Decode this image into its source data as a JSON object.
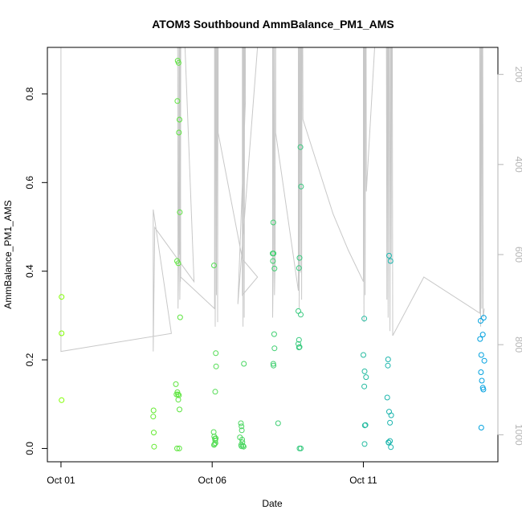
{
  "chart_data": {
    "type": "scatter",
    "title": "ATOM3 Southbound AmmBalance_PM1_AMS",
    "xlabel": "Date",
    "ylabel": "AmmBalance_PM1_AMS",
    "x_tick_labels": [
      {
        "x": 1.0,
        "label": "Oct 01"
      },
      {
        "x": 6.0,
        "label": "Oct 06"
      },
      {
        "x": 11.0,
        "label": "Oct 11"
      }
    ],
    "y_ticks": [
      0.0,
      0.2,
      0.4,
      0.6,
      0.8
    ],
    "y_tick_labels": [
      "0.0",
      "0.2",
      "0.4",
      "0.6",
      "0.8"
    ],
    "xlim": [
      0.55,
      15.45
    ],
    "ylim": [
      -0.03,
      0.905
    ],
    "right_axis": {
      "ticks": [
        200,
        400,
        600,
        800,
        1000
      ],
      "tick_labels": [
        "200",
        "400",
        "600",
        "800",
        "1000"
      ],
      "ylim": [
        1060,
        140
      ],
      "color": "#b5b5b5"
    },
    "grid": false,
    "legend": "none",
    "series": [
      {
        "color_start": "#80ff00",
        "color_end": "#00a0e0",
        "points": [
          [
            1.02,
            0.342
          ],
          [
            1.02,
            0.26
          ],
          [
            1.02,
            0.109
          ],
          [
            4.06,
            0.086
          ],
          [
            4.05,
            0.072
          ],
          [
            4.07,
            0.036
          ],
          [
            4.08,
            0.004
          ],
          [
            4.8,
            0.145
          ],
          [
            4.82,
            0.122
          ],
          [
            4.85,
            0.127
          ],
          [
            4.88,
            0.11
          ],
          [
            4.9,
            0.12
          ],
          [
            4.92,
            0.088
          ],
          [
            4.87,
            0.122
          ],
          [
            4.91,
            0.0
          ],
          [
            4.84,
            0.0
          ],
          [
            4.86,
            0.875
          ],
          [
            4.89,
            0.87
          ],
          [
            4.85,
            0.784
          ],
          [
            4.92,
            0.742
          ],
          [
            4.9,
            0.713
          ],
          [
            4.93,
            0.533
          ],
          [
            4.84,
            0.423
          ],
          [
            4.88,
            0.418
          ],
          [
            4.94,
            0.296
          ],
          [
            6.06,
            0.413
          ],
          [
            6.12,
            0.215
          ],
          [
            6.13,
            0.185
          ],
          [
            6.1,
            0.128
          ],
          [
            6.05,
            0.037
          ],
          [
            6.07,
            0.027
          ],
          [
            6.09,
            0.022
          ],
          [
            6.1,
            0.018
          ],
          [
            6.12,
            0.023
          ],
          [
            6.08,
            0.01
          ],
          [
            6.06,
            0.008
          ],
          [
            6.11,
            0.012
          ],
          [
            6.95,
            0.057
          ],
          [
            6.97,
            0.05
          ],
          [
            6.98,
            0.041
          ],
          [
            6.92,
            0.025
          ],
          [
            6.99,
            0.02
          ],
          [
            7.0,
            0.014
          ],
          [
            6.96,
            0.008
          ],
          [
            7.02,
            0.006
          ],
          [
            7.04,
            0.004
          ],
          [
            6.97,
            0.005
          ],
          [
            7.05,
            0.191
          ],
          [
            8.02,
            0.51
          ],
          [
            8.0,
            0.44
          ],
          [
            8.03,
            0.44
          ],
          [
            8.01,
            0.423
          ],
          [
            8.06,
            0.406
          ],
          [
            8.05,
            0.258
          ],
          [
            8.06,
            0.226
          ],
          [
            8.02,
            0.191
          ],
          [
            8.03,
            0.187
          ],
          [
            8.18,
            0.057
          ],
          [
            8.92,
            0.68
          ],
          [
            8.94,
            0.591
          ],
          [
            8.89,
            0.43
          ],
          [
            8.87,
            0.407
          ],
          [
            8.85,
            0.31
          ],
          [
            8.93,
            0.302
          ],
          [
            8.87,
            0.245
          ],
          [
            8.85,
            0.236
          ],
          [
            8.89,
            0.229
          ],
          [
            8.87,
            0.228
          ],
          [
            8.89,
            0.0
          ],
          [
            8.93,
            0.0
          ],
          [
            11.03,
            0.293
          ],
          [
            11.0,
            0.211
          ],
          [
            11.04,
            0.174
          ],
          [
            11.09,
            0.161
          ],
          [
            11.03,
            0.14
          ],
          [
            11.07,
            0.053
          ],
          [
            11.05,
            0.052
          ],
          [
            11.04,
            0.01
          ],
          [
            11.85,
            0.435
          ],
          [
            11.9,
            0.423
          ],
          [
            11.82,
            0.201
          ],
          [
            11.81,
            0.187
          ],
          [
            11.79,
            0.115
          ],
          [
            11.85,
            0.083
          ],
          [
            11.92,
            0.075
          ],
          [
            11.88,
            0.058
          ],
          [
            11.83,
            0.014
          ],
          [
            11.88,
            0.017
          ],
          [
            11.84,
            0.013
          ],
          [
            11.91,
            0.003
          ],
          [
            14.98,
            0.295
          ],
          [
            14.88,
            0.288
          ],
          [
            14.95,
            0.257
          ],
          [
            14.86,
            0.247
          ],
          [
            14.9,
            0.211
          ],
          [
            15.0,
            0.198
          ],
          [
            14.89,
            0.172
          ],
          [
            14.92,
            0.153
          ],
          [
            14.95,
            0.137
          ],
          [
            14.97,
            0.133
          ],
          [
            14.9,
            0.047
          ]
        ]
      }
    ],
    "background_series": {
      "color": "#c8c8c8",
      "axis": "right",
      "points": [
        [
          1.0,
          -300
        ],
        [
          1.0,
          815
        ],
        [
          4.65,
          775
        ],
        [
          4.05,
          500
        ],
        [
          4.05,
          815
        ],
        [
          4.1,
          540
        ],
        [
          5.4,
          660
        ],
        [
          4.85,
          -300
        ],
        [
          4.87,
          720
        ],
        [
          4.89,
          620
        ],
        [
          4.91,
          -300
        ],
        [
          4.93,
          700
        ],
        [
          4.95,
          590
        ],
        [
          4.97,
          -300
        ],
        [
          4.95,
          660
        ],
        [
          4.9,
          -300
        ],
        [
          4.92,
          600
        ],
        [
          4.94,
          -300
        ],
        [
          4.96,
          650
        ],
        [
          6.08,
          720
        ],
        [
          6.08,
          -300
        ],
        [
          6.1,
          760
        ],
        [
          6.12,
          -300
        ],
        [
          6.14,
          690
        ],
        [
          6.16,
          -300
        ],
        [
          6.18,
          750
        ],
        [
          6.2,
          -300
        ],
        [
          6.2,
          330
        ],
        [
          7.0,
          610
        ],
        [
          7.5,
          650
        ],
        [
          7.0,
          690
        ],
        [
          7.0,
          -300
        ],
        [
          7.02,
          760
        ],
        [
          7.04,
          -300
        ],
        [
          7.06,
          740
        ],
        [
          7.08,
          -300
        ],
        [
          7.1,
          260
        ],
        [
          6.85,
          710
        ],
        [
          8.0,
          -300
        ],
        [
          8.0,
          740
        ],
        [
          8.02,
          620
        ],
        [
          8.04,
          -300
        ],
        [
          8.06,
          690
        ],
        [
          8.08,
          620
        ],
        [
          8.1,
          -300
        ],
        [
          8.1,
          330
        ],
        [
          8.85,
          680
        ],
        [
          8.85,
          -300
        ],
        [
          8.88,
          720
        ],
        [
          8.9,
          -300
        ],
        [
          8.92,
          640
        ],
        [
          8.94,
          -300
        ],
        [
          8.96,
          700
        ],
        [
          8.98,
          -300
        ],
        [
          9.0,
          300
        ],
        [
          10.0,
          510
        ],
        [
          10.5,
          590
        ],
        [
          11.0,
          660
        ],
        [
          11.0,
          -300
        ],
        [
          11.02,
          750
        ],
        [
          11.04,
          -300
        ],
        [
          11.06,
          690
        ],
        [
          11.08,
          -300
        ],
        [
          11.1,
          460
        ],
        [
          11.75,
          -300
        ],
        [
          11.78,
          700
        ],
        [
          11.8,
          -300
        ],
        [
          11.82,
          740
        ],
        [
          11.84,
          -300
        ],
        [
          11.86,
          360
        ],
        [
          11.88,
          770
        ],
        [
          11.9,
          -300
        ],
        [
          11.92,
          620
        ],
        [
          11.95,
          -300
        ],
        [
          11.97,
          780
        ],
        [
          13.0,
          650
        ],
        [
          14.85,
          730
        ],
        [
          14.85,
          -300
        ],
        [
          14.88,
          760
        ],
        [
          14.9,
          -300
        ],
        [
          14.92,
          720
        ],
        [
          14.94,
          -300
        ],
        [
          14.96,
          740
        ],
        [
          15.0,
          720
        ]
      ]
    }
  }
}
